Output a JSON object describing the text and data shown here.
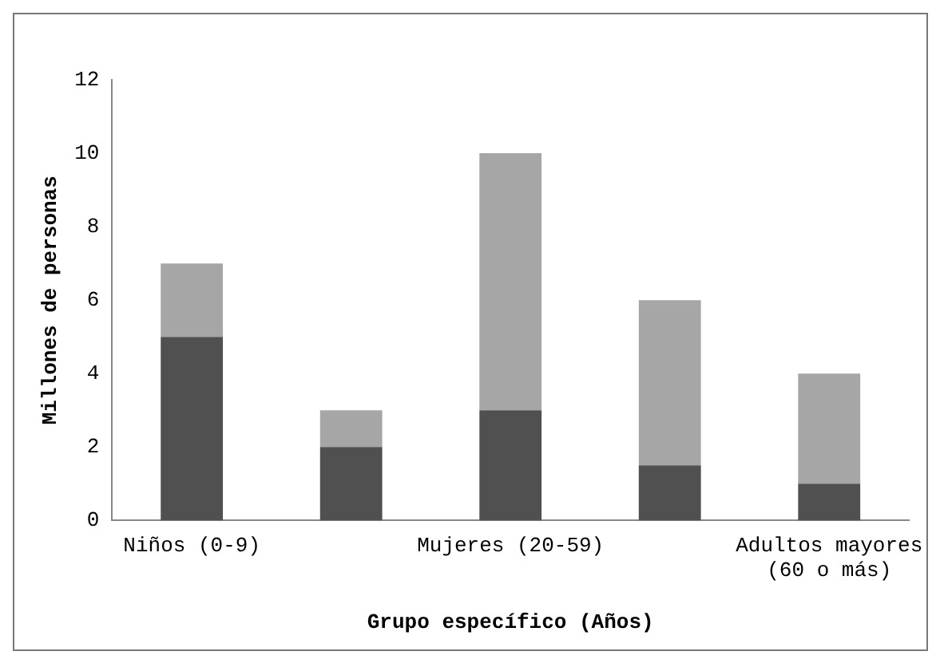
{
  "chart_data": {
    "type": "bar",
    "stacked": true,
    "xlabel": "Grupo específico (Años)",
    "ylabel": "Millones de personas",
    "categories": [
      "Niños (0-9)",
      null,
      "Mujeres (20-59)",
      null,
      "Adultos mayores (60 o más)"
    ],
    "series": [
      {
        "color": "#505050",
        "values": [
          5,
          2,
          3,
          1.5,
          1
        ]
      },
      {
        "color": "#a6a6a6",
        "values": [
          2,
          1,
          7,
          4.5,
          3
        ]
      }
    ],
    "ylim": [
      0,
      12
    ],
    "yticks": [
      0,
      2,
      4,
      6,
      8,
      10,
      12
    ],
    "grid": false,
    "legend": false
  }
}
